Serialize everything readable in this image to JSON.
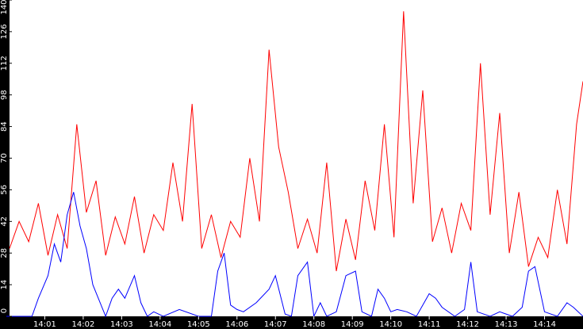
{
  "chart_data": {
    "type": "line",
    "title": "",
    "xlabel": "",
    "ylabel": "",
    "grid": false,
    "legend": "none",
    "x_range": [
      "14:00:05",
      "14:15:00"
    ],
    "ylim": [
      0,
      140
    ],
    "y_ticks": [
      "0",
      "14",
      "28",
      "42",
      "56",
      "70",
      "84",
      "98",
      "112",
      "126",
      "140"
    ],
    "x_ticks": [
      "14:01",
      "14:02",
      "14:03",
      "14:04",
      "14:05",
      "14:06",
      "14:07",
      "14:08",
      "14:09",
      "14:10",
      "14:11",
      "14:12",
      "14:13",
      "14:14"
    ],
    "series": [
      {
        "color": "#ff0000",
        "x": [
          "14:00:05",
          "14:00:20",
          "14:00:35",
          "14:00:50",
          "14:01:05",
          "14:01:20",
          "14:01:35",
          "14:01:50",
          "14:02:05",
          "14:02:20",
          "14:02:35",
          "14:02:50",
          "14:03:05",
          "14:03:20",
          "14:03:35",
          "14:03:50",
          "14:04:05",
          "14:04:20",
          "14:04:35",
          "14:04:50",
          "14:05:05",
          "14:05:20",
          "14:05:35",
          "14:05:50",
          "14:06:05",
          "14:06:20",
          "14:06:35",
          "14:06:50",
          "14:07:05",
          "14:07:20",
          "14:07:35",
          "14:07:50",
          "14:08:05",
          "14:08:20",
          "14:08:35",
          "14:08:50",
          "14:09:05",
          "14:09:20",
          "14:09:35",
          "14:09:50",
          "14:10:05",
          "14:10:20",
          "14:10:35",
          "14:10:50",
          "14:11:05",
          "14:11:20",
          "14:11:35",
          "14:11:50",
          "14:12:05",
          "14:12:20",
          "14:12:35",
          "14:12:50",
          "14:13:05",
          "14:13:20",
          "14:13:35",
          "14:13:50",
          "14:14:05",
          "14:14:20",
          "14:14:35",
          "14:14:50",
          "14:15:00"
        ],
        "values": [
          30,
          42,
          33,
          50,
          27,
          45,
          30,
          85,
          46,
          60,
          27,
          44,
          32,
          53,
          28,
          45,
          38,
          68,
          42,
          94,
          30,
          45,
          26,
          42,
          35,
          70,
          42,
          118,
          75,
          55,
          30,
          43,
          28,
          68,
          20,
          43,
          25,
          60,
          38,
          85,
          35,
          135,
          50,
          100,
          33,
          48,
          28,
          50,
          38,
          112,
          45,
          90,
          28,
          55,
          22,
          35,
          26,
          56,
          32,
          85,
          104
        ]
      },
      {
        "color": "#0000ff",
        "x": [
          "14:00:00",
          "14:00:40",
          "14:00:50",
          "14:01:05",
          "14:01:15",
          "14:01:25",
          "14:01:35",
          "14:01:45",
          "14:01:55",
          "14:02:05",
          "14:02:15",
          "14:02:25",
          "14:02:35",
          "14:02:45",
          "14:02:55",
          "14:03:05",
          "14:03:20",
          "14:03:30",
          "14:03:40",
          "14:03:50",
          "14:04:05",
          "14:04:30",
          "14:05:00",
          "14:05:20",
          "14:05:30",
          "14:05:40",
          "14:05:50",
          "14:06:00",
          "14:06:10",
          "14:06:30",
          "14:06:50",
          "14:07:00",
          "14:07:15",
          "14:07:25",
          "14:07:35",
          "14:07:50",
          "14:08:00",
          "14:08:10",
          "14:08:20",
          "14:08:35",
          "14:08:50",
          "14:09:05",
          "14:09:15",
          "14:09:30",
          "14:09:40",
          "14:09:50",
          "14:10:00",
          "14:10:10",
          "14:10:25",
          "14:10:40",
          "14:11:00",
          "14:11:10",
          "14:11:20",
          "14:11:40",
          "14:11:55",
          "14:12:05",
          "14:12:15",
          "14:12:35",
          "14:12:50",
          "14:13:10",
          "14:13:25",
          "14:13:35",
          "14:13:45",
          "14:14:00",
          "14:14:20",
          "14:14:35",
          "14:14:45",
          "14:15:00"
        ],
        "values": [
          0,
          0,
          8,
          18,
          32,
          24,
          45,
          55,
          40,
          30,
          14,
          7,
          0,
          8,
          12,
          8,
          18,
          6,
          0,
          2,
          0,
          3,
          0,
          0,
          20,
          28,
          5,
          3,
          2,
          6,
          12,
          18,
          1,
          0,
          18,
          24,
          0,
          6,
          0,
          2,
          18,
          20,
          2,
          0,
          12,
          8,
          2,
          3,
          2,
          0,
          10,
          8,
          4,
          0,
          3,
          24,
          2,
          0,
          2,
          0,
          4,
          20,
          22,
          2,
          0,
          6,
          4,
          0
        ]
      }
    ]
  }
}
